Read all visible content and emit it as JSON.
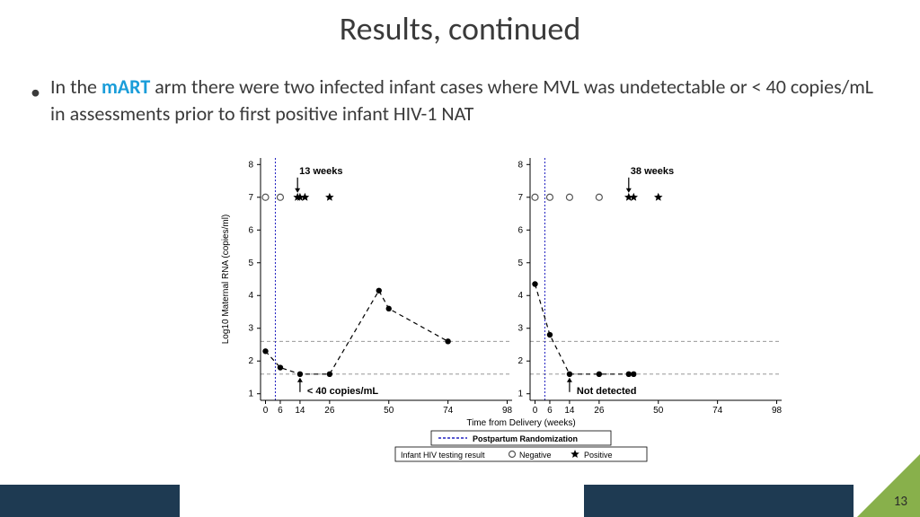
{
  "title": {
    "text": "Results, continued",
    "fontsize": 36,
    "color": "#3a3a3a"
  },
  "bullet": {
    "pre": "In the ",
    "emph": "mART",
    "post": " arm there were two infected infant cases where MVL was undetectable or < 40 copies/mL in assessments prior to first positive infant HIV-1 NAT",
    "fontsize": 22,
    "color": "#3a3a3a",
    "emph_color": "#1a9dd9"
  },
  "charts": {
    "background_color": "#ffffff",
    "axis_color": "#000000",
    "ref_line_color": "#888888",
    "ref_line_dash": "4,3",
    "vline_color": "#2020c0",
    "vline_dash": "2,2",
    "line_color": "#000000",
    "line_dash": "5,4",
    "marker_color": "#000000",
    "open_marker_stroke": "#555555",
    "star_color": "#000000",
    "x_axis": {
      "label": "Time from Delivery (weeks)",
      "ticks": [
        0,
        6,
        14,
        26,
        50,
        74,
        98
      ],
      "xlim": [
        -2,
        100
      ]
    },
    "y_axis": {
      "label": "Log10 Maternal RNA (copies/ml)",
      "ticks": [
        1,
        2,
        3,
        4,
        5,
        6,
        7,
        8
      ],
      "ylim": [
        0.8,
        8.2
      ]
    },
    "ref_lines_y": [
      1.6,
      2.6
    ],
    "vline_x": 4,
    "legend": {
      "line_label": "Postpartum Randomization",
      "result_label": "Infant HIV testing result",
      "neg_label": "Negative",
      "pos_label": "Positive"
    },
    "left": {
      "annotation_top": "13 weeks",
      "annotation_bottom": "< 40 copies/mL",
      "annotation_bottom_x": 14,
      "series": [
        {
          "x": 0,
          "y": 2.3
        },
        {
          "x": 6,
          "y": 1.8
        },
        {
          "x": 14,
          "y": 1.6
        },
        {
          "x": 26,
          "y": 1.6
        },
        {
          "x": 46,
          "y": 4.15
        },
        {
          "x": 50,
          "y": 3.6
        },
        {
          "x": 74,
          "y": 2.6
        }
      ],
      "neg_circles_x": [
        0,
        6
      ],
      "pos_stars_x": [
        13,
        14,
        16,
        26
      ]
    },
    "right": {
      "annotation_top": "38 weeks",
      "annotation_bottom": "Not detected",
      "annotation_bottom_x": 14,
      "series": [
        {
          "x": 0,
          "y": 4.35
        },
        {
          "x": 6,
          "y": 2.8
        },
        {
          "x": 14,
          "y": 1.6
        },
        {
          "x": 26,
          "y": 1.6
        },
        {
          "x": 38,
          "y": 1.6
        },
        {
          "x": 40,
          "y": 1.6
        }
      ],
      "neg_circles_x": [
        0,
        6,
        14,
        26
      ],
      "pos_stars_x": [
        38,
        40,
        50
      ]
    }
  },
  "footer": {
    "bar_color": "#1e3a52",
    "tri_color": "#88b04b",
    "page": "13"
  }
}
